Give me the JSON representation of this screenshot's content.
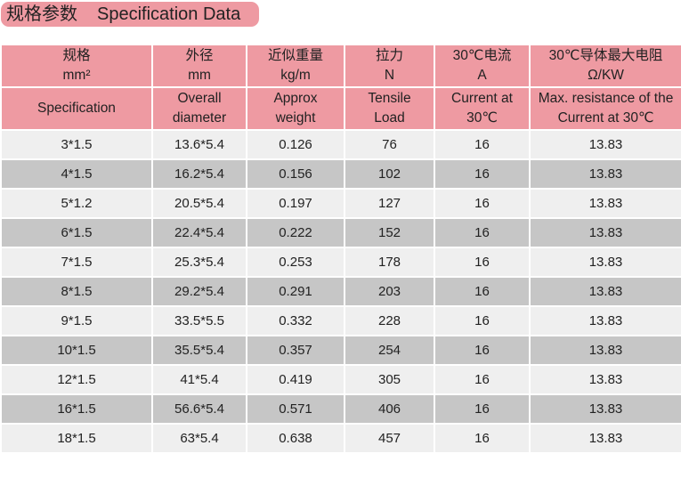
{
  "title": {
    "zh": "规格参数",
    "en": "Specification Data"
  },
  "colors": {
    "header": "#ee9aa2",
    "row_light": "#efefef",
    "row_dark": "#c6c6c6"
  },
  "header_zh": [
    [
      "规格",
      "mm²"
    ],
    [
      "外径",
      "mm"
    ],
    [
      "近似重量",
      "kg/m"
    ],
    [
      "拉力",
      "N"
    ],
    [
      "30℃电流",
      "A"
    ],
    [
      "30℃导体最大电阻",
      "Ω/KW"
    ]
  ],
  "header_en": [
    [
      "Specification",
      ""
    ],
    [
      "Overall",
      "diameter"
    ],
    [
      "Approx",
      "weight"
    ],
    [
      "Tensile",
      "Load"
    ],
    [
      "Current at",
      "30℃"
    ],
    [
      "Max. resistance of the",
      "Current at 30℃"
    ]
  ],
  "rows": [
    [
      "3*1.5",
      "13.6*5.4",
      "0.126",
      "76",
      "16",
      "13.83"
    ],
    [
      "4*1.5",
      "16.2*5.4",
      "0.156",
      "102",
      "16",
      "13.83"
    ],
    [
      "5*1.2",
      "20.5*5.4",
      "0.197",
      "127",
      "16",
      "13.83"
    ],
    [
      "6*1.5",
      "22.4*5.4",
      "0.222",
      "152",
      "16",
      "13.83"
    ],
    [
      "7*1.5",
      "25.3*5.4",
      "0.253",
      "178",
      "16",
      "13.83"
    ],
    [
      "8*1.5",
      "29.2*5.4",
      "0.291",
      "203",
      "16",
      "13.83"
    ],
    [
      "9*1.5",
      "33.5*5.5",
      "0.332",
      "228",
      "16",
      "13.83"
    ],
    [
      "10*1.5",
      "35.5*5.4",
      "0.357",
      "254",
      "16",
      "13.83"
    ],
    [
      "12*1.5",
      "41*5.4",
      "0.419",
      "305",
      "16",
      "13.83"
    ],
    [
      "16*1.5",
      "56.6*5.4",
      "0.571",
      "406",
      "16",
      "13.83"
    ],
    [
      "18*1.5",
      "63*5.4",
      "0.638",
      "457",
      "16",
      "13.83"
    ]
  ]
}
